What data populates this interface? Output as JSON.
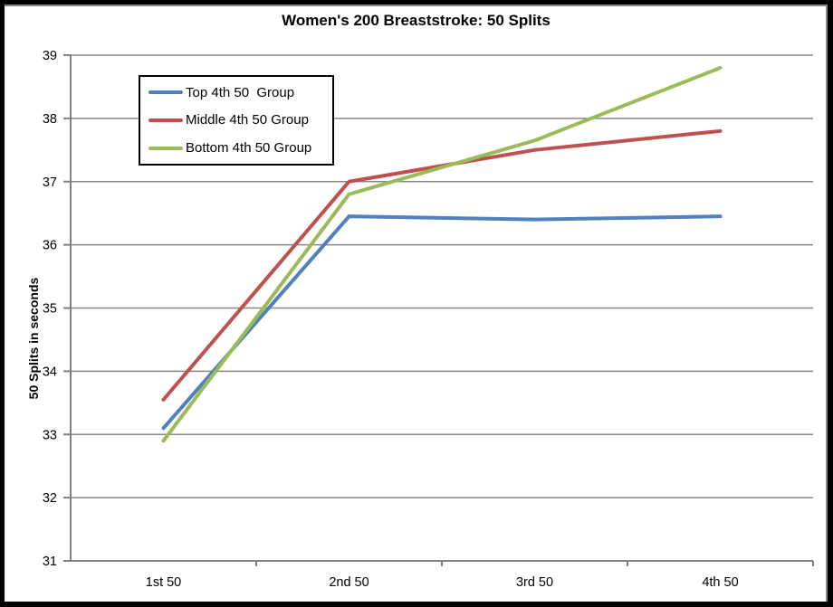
{
  "frame": {
    "background": "#ffffff",
    "border_color": "#000000",
    "highlight_color": "#8a8a8a"
  },
  "chart_data": {
    "type": "line",
    "title": "Women's 200 Breaststroke: 50 Splits",
    "ylabel": "50 Splits in seconds",
    "xlabel": "",
    "categories": [
      "1st 50",
      "2nd 50",
      "3rd 50",
      "4th 50"
    ],
    "series": [
      {
        "name": "Top 4th 50  Group",
        "color": "#4F81BD",
        "values": [
          33.1,
          36.45,
          36.4,
          36.45
        ]
      },
      {
        "name": "Middle 4th 50 Group",
        "color": "#C0504D",
        "values": [
          33.55,
          37.0,
          37.5,
          37.8
        ]
      },
      {
        "name": "Bottom 4th 50 Group",
        "color": "#9BBB59",
        "values": [
          32.9,
          36.8,
          37.65,
          38.8
        ]
      }
    ],
    "ylim": [
      31,
      39
    ],
    "yticks": [
      31,
      32,
      33,
      34,
      35,
      36,
      37,
      38,
      39
    ],
    "grid": "horizontal",
    "gridline_color": "#878787",
    "axis_color": "#808080",
    "tick_label_color": "#000000",
    "legend": {
      "position": "top-left-inside",
      "border_color": "#000000",
      "background": "#ffffff"
    }
  }
}
